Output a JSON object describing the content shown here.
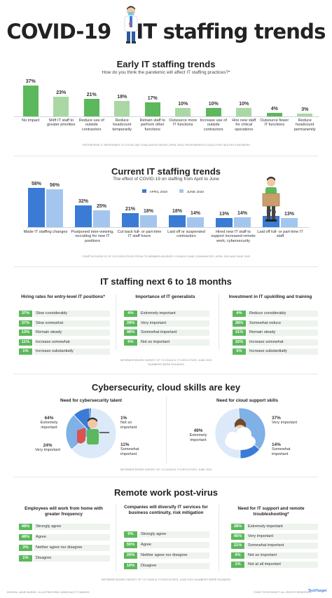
{
  "header": {
    "title_left": "COVID-19",
    "title_right": "IT staffing trends"
  },
  "colors": {
    "green": "#5cb85c",
    "green_light": "#a9d8a5",
    "blue_dark": "#3a7bd5",
    "blue_light": "#a4c6ee",
    "row_bg": "#eef3ee"
  },
  "early": {
    "title": "Early IT staffing trends",
    "subtitle": "How do you think the pandemic will affect IT staffing practices?*",
    "note": "*ENTERPRISE IT RESPONSES TO COVID-19(IT EVALUATION GROUP, APRIL 2020) *RESPONDENTS COULD PICK MULTIPLE ANSWERS"
  },
  "current": {
    "title": "Current IT staffing trends",
    "subtitle": "The effect of COVID-19 on staffing from April to June",
    "legend_a": "APRIL 2020",
    "legend_b": "JUNE 2020",
    "note": "COMPTIA SURVEYS OF CIO EXECUTIVES FROM ITS MEMBER ADVISORY COUNCILS AND COMMUNITIES, APRIL 2020 AND JUNE 2020"
  },
  "next": {
    "title": "IT staffing next 6 to 18 months",
    "note1": "INFORMER BOARD SURVEY OF 74 COUNCIL IT EXECUTIVES, JUNE 2020",
    "note2": "*NUMBERS WERE ROUNDED",
    "col1_title": "Hiring rates for entry-level IT positions*",
    "col2_title": "Importance of IT generalists",
    "col3_title": "Investment in IT upskilling and training"
  },
  "cyber": {
    "title": "Cybersecurity, cloud skills are key",
    "left_title": "Need for cybersecurity talent",
    "right_title": "Need for cloud support skills",
    "note": "INFORMER BOARD SURVEY OF 74 COUNCIL IT EXECUTIVES, JUNE 2020",
    "left_labels": [
      {
        "pct": "64%",
        "text": "Extremely important"
      },
      {
        "pct": "1%",
        "text": "Not so important"
      },
      {
        "pct": "24%",
        "text": "Very important"
      },
      {
        "pct": "11%",
        "text": "Somewhat important"
      }
    ],
    "right_labels": [
      {
        "pct": "49%",
        "text": "Extremely important"
      },
      {
        "pct": "37%",
        "text": "Very important"
      },
      {
        "pct": "14%",
        "text": "Somewhat important"
      }
    ]
  },
  "remote": {
    "title": "Remote work post-virus",
    "col1_title": "Employees will work from home with greater frequency",
    "col2_title": "Companies will diversify IT services for business continuity, risk mitigation",
    "col3_title": "Need for IT support and remote troubleshooting*",
    "note": "INFORMER BOARD SURVEY OF 74 COUNCIL IT EXECUTIVES, JUNE 2020 *NUMBERS WERE ROUNDED"
  },
  "footer": {
    "left": "DESIGN: LANIE BURNS / ILLUSTRATIONS: WINDSJUCITY IMAGES",
    "right": "©2020 TECHTARGET. ALL RIGHTS RESERVED.",
    "brand": "TechTarget"
  },
  "chart_data": [
    {
      "type": "bar",
      "title": "Early IT staffing trends",
      "categories": [
        "No impact",
        "Shift IT staff to greater priorities",
        "Reduce use of outside contractors",
        "Reduce headcount temporarily",
        "Retrain staff to perform other functions",
        "Outsource more IT functions",
        "Increase use of outside contractors",
        "Hire new staff for critical operations",
        "Outsource fewer IT functions",
        "Reduce headcount permanently"
      ],
      "values": [
        37,
        23,
        21,
        18,
        17,
        10,
        10,
        10,
        4,
        3
      ],
      "labels": [
        "37%",
        "23%",
        "21%",
        "18%",
        "17%",
        "10%",
        "10%",
        "10%",
        "4%",
        "3%"
      ],
      "ylim": [
        0,
        40
      ]
    },
    {
      "type": "bar",
      "title": "Current IT staffing trends",
      "categories": [
        "Made IT staffing changes",
        "Postponed inter-viewing, recruiting for new IT positions",
        "Cut back full- or part-time IT staff hours",
        "Laid off or suspended contractors",
        "Hired new IT staff to support increased remote work, cybersecurity",
        "Laid off full- or part-time IT staff"
      ],
      "series": [
        {
          "name": "APRIL 2020",
          "values": [
            58,
            32,
            21,
            18,
            13,
            17
          ],
          "labels": [
            "58%",
            "32%",
            "21%",
            "18%",
            "13%",
            "17%"
          ]
        },
        {
          "name": "JUNE 2020",
          "values": [
            56,
            25,
            18,
            14,
            14,
            13
          ],
          "labels": [
            "56%",
            "25%",
            "18%",
            "14%",
            "14%",
            "13%"
          ]
        }
      ],
      "ylim": [
        0,
        60
      ]
    },
    {
      "type": "table",
      "title": "Hiring rates for entry-level IT positions*",
      "rows": [
        {
          "value": "37%",
          "label": "Slow considerably"
        },
        {
          "value": "37%",
          "label": "Slow somewhat"
        },
        {
          "value": "13%",
          "label": "Remain steady"
        },
        {
          "value": "11%",
          "label": "Increase somewhat"
        },
        {
          "value": "1%",
          "label": "Increase substantially"
        }
      ]
    },
    {
      "type": "table",
      "title": "Importance of IT generalists",
      "rows": [
        {
          "value": "4%",
          "label": "Extremely important"
        },
        {
          "value": "39%",
          "label": "Very important"
        },
        {
          "value": "48%",
          "label": "Somewhat important"
        },
        {
          "value": "9%",
          "label": "Not so important"
        }
      ]
    },
    {
      "type": "table",
      "title": "Investment in IT upskilling and training",
      "rows": [
        {
          "value": "4%",
          "label": "Reduce considerably"
        },
        {
          "value": "28%",
          "label": "Somewhat reduce"
        },
        {
          "value": "31%",
          "label": "Remain steady"
        },
        {
          "value": "32%",
          "label": "Increase somewhat"
        },
        {
          "value": "5%",
          "label": "Increase substantially"
        }
      ]
    },
    {
      "type": "pie",
      "title": "Need for cybersecurity talent",
      "categories": [
        "Extremely important",
        "Very important",
        "Somewhat important",
        "Not so important"
      ],
      "values": [
        64,
        24,
        11,
        1
      ]
    },
    {
      "type": "pie",
      "title": "Need for cloud support skills",
      "categories": [
        "Extremely important",
        "Very important",
        "Somewhat important"
      ],
      "values": [
        49,
        37,
        14
      ]
    },
    {
      "type": "table",
      "title": "Employees will work from home with greater frequency",
      "rows": [
        {
          "value": "48%",
          "label": "Strongly agree"
        },
        {
          "value": "48%",
          "label": "Agree"
        },
        {
          "value": "3%",
          "label": "Neither agree nor disagree"
        },
        {
          "value": "1%",
          "label": "Disagree"
        }
      ]
    },
    {
      "type": "table",
      "title": "Companies will diversify IT services for business continuity, risk mitigation",
      "rows": [
        {
          "value": "9%",
          "label": "Strongly agree"
        },
        {
          "value": "55%",
          "label": "Agree"
        },
        {
          "value": "20%",
          "label": "Neither agree nor disagree"
        },
        {
          "value": "16%",
          "label": "Disagree"
        }
      ]
    },
    {
      "type": "table",
      "title": "Need for IT support and remote troubleshooting*",
      "rows": [
        {
          "value": "28%",
          "label": "Extremely important"
        },
        {
          "value": "45%",
          "label": "Very important"
        },
        {
          "value": "21%",
          "label": "Somewhat important"
        },
        {
          "value": "4%",
          "label": "Not so important"
        },
        {
          "value": "1%",
          "label": "Not at all important"
        }
      ]
    }
  ]
}
